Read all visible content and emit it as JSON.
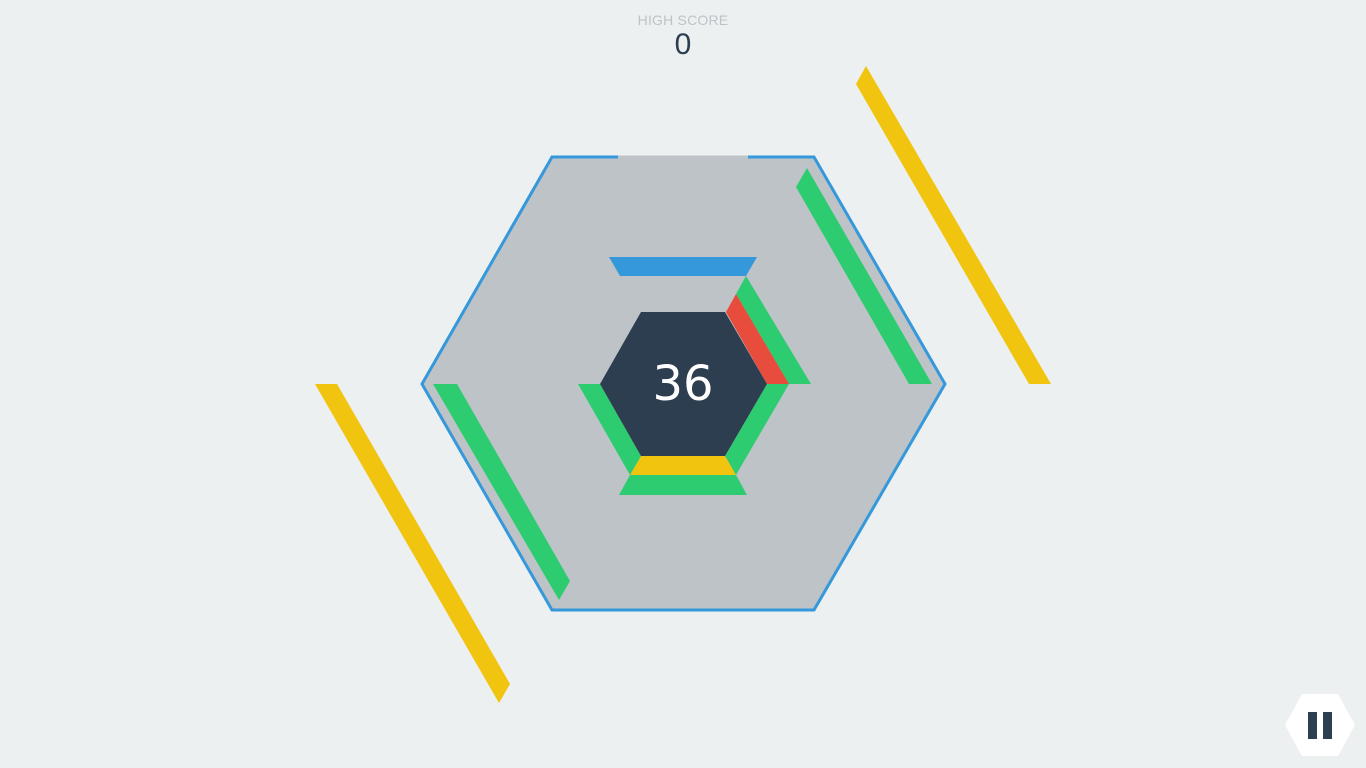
{
  "hud": {
    "high_score_label": "HIGH SCORE",
    "high_score_value": "0"
  },
  "game": {
    "current_score": "36"
  },
  "colors": {
    "background": "#ecf0f1",
    "board_fill": "#bdc3c7",
    "board_outline": "#3498db",
    "center_hex": "#2c3e50",
    "score_text": "#ffffff",
    "pause_bg": "#ffffff",
    "pause_icon": "#2c3e50",
    "block_blue": "#3498db",
    "block_green": "#2ecc71",
    "block_red": "#e74c3c",
    "block_yellow": "#f1c40f"
  },
  "icons": {
    "pause": "pause-icon"
  },
  "blocks": {
    "stacked": [
      {
        "side": "top",
        "color": "blue"
      },
      {
        "side": "upper-right",
        "color": "red"
      },
      {
        "side": "upper-right",
        "color": "green"
      },
      {
        "side": "lower-right",
        "color": "green"
      },
      {
        "side": "bottom",
        "color": "yellow"
      },
      {
        "side": "bottom",
        "color": "green"
      },
      {
        "side": "lower-left",
        "color": "green"
      }
    ],
    "falling": [
      {
        "side": "upper-right",
        "color": "green"
      },
      {
        "side": "upper-right",
        "color": "yellow"
      },
      {
        "side": "lower-left",
        "color": "green"
      },
      {
        "side": "lower-left",
        "color": "yellow"
      }
    ]
  }
}
